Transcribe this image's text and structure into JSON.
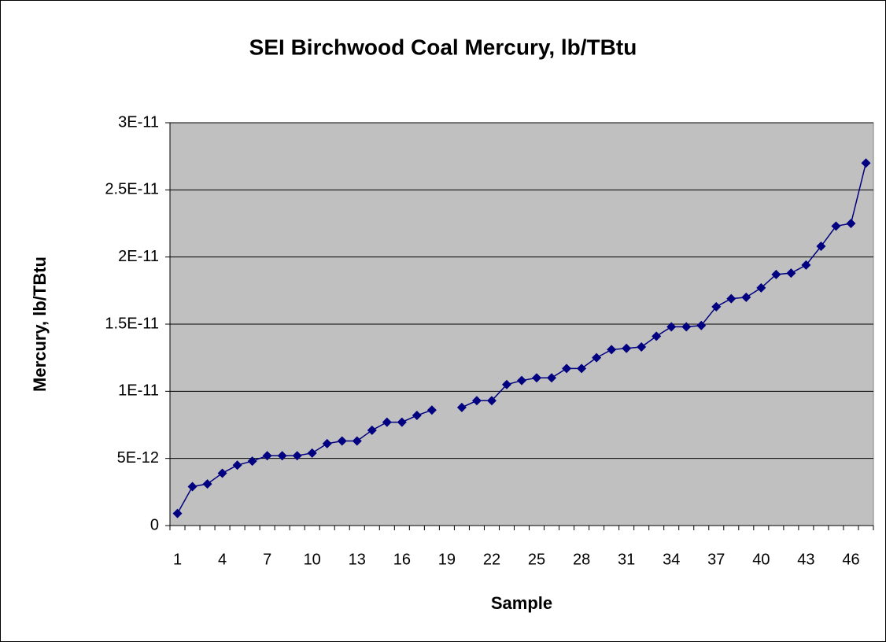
{
  "chart_data": {
    "type": "line",
    "title": "SEI Birchwood Coal Mercury, lb/TBtu",
    "x_label": "Sample",
    "y_label": "Mercury,  lb/TBtu",
    "categories": [
      "1",
      null,
      null,
      "4",
      null,
      null,
      "7",
      null,
      null,
      "10",
      null,
      null,
      "13",
      null,
      null,
      "16",
      null,
      null,
      "19",
      null,
      null,
      "22",
      null,
      null,
      "25",
      null,
      null,
      "28",
      null,
      null,
      "31",
      null,
      null,
      "34",
      null,
      null,
      "37",
      null,
      null,
      "40",
      null,
      null,
      "43",
      null,
      null,
      "46",
      null
    ],
    "series": [
      {
        "name": "Mercury",
        "color": "#000080",
        "values": [
          9e-13,
          2.9e-12,
          3.1e-12,
          3.9e-12,
          4.5e-12,
          4.8e-12,
          5.2e-12,
          5.2e-12,
          5.2e-12,
          5.4e-12,
          6.1e-12,
          6.3e-12,
          6.3e-12,
          7.1e-12,
          7.7e-12,
          7.7e-12,
          8.2e-12,
          8.6e-12,
          null,
          8.8e-12,
          9.3e-12,
          9.3e-12,
          1.05e-11,
          1.08e-11,
          1.1e-11,
          1.1e-11,
          1.17e-11,
          1.17e-11,
          1.25e-11,
          1.31e-11,
          1.32e-11,
          1.33e-11,
          1.41e-11,
          1.48e-11,
          1.48e-11,
          1.49e-11,
          1.63e-11,
          1.69e-11,
          1.7e-11,
          1.77e-11,
          1.87e-11,
          1.88e-11,
          1.94e-11,
          2.08e-11,
          2.23e-11,
          2.25e-11,
          2.7e-11
        ]
      }
    ],
    "ylim": [
      0,
      3e-11
    ],
    "yticks": [
      0,
      {
        "value": 5e-12,
        "label": "5E-12"
      },
      {
        "value": 1e-11,
        "label": "1E-11"
      },
      {
        "value": 1.5e-11,
        "label": "1.5E-11"
      },
      {
        "value": 2e-11,
        "label": "2E-11"
      },
      {
        "value": 2.5e-11,
        "label": "2.5E-11"
      },
      {
        "value": 3e-11,
        "label": "3E-11"
      }
    ],
    "grid": true,
    "plot_background": "#c0c0c0",
    "marker": "diamond"
  }
}
